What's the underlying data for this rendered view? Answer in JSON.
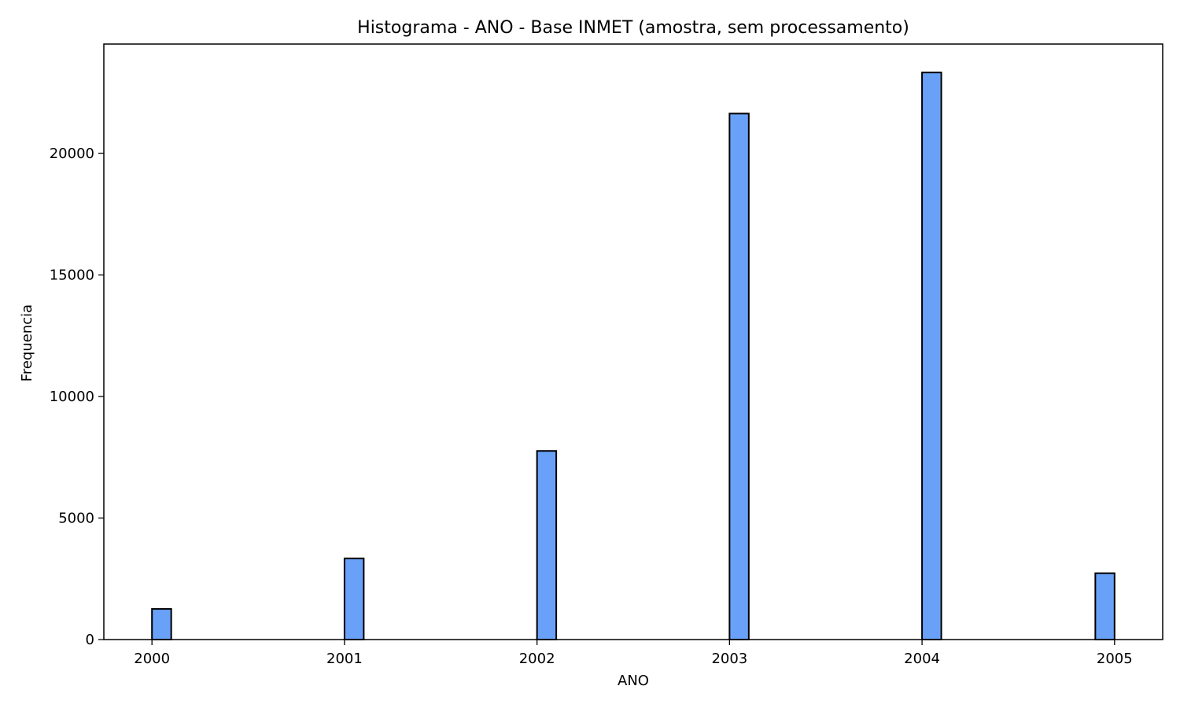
{
  "chart_data": {
    "type": "bar",
    "title": "Histograma - ANO - Base INMET (amostra, sem processamento)",
    "xlabel": "ANO",
    "ylabel": "Frequencia",
    "x_ticks": [
      "2000",
      "2001",
      "2002",
      "2003",
      "2004",
      "2005"
    ],
    "y_ticks": [
      "0",
      "5000",
      "10000",
      "15000",
      "20000"
    ],
    "xlim": [
      1999.75,
      2005.25
    ],
    "ylim": [
      0,
      24500
    ],
    "bins": [
      {
        "start": 2000.0,
        "end": 2000.1,
        "count": 1260
      },
      {
        "start": 2001.0,
        "end": 2001.1,
        "count": 3340
      },
      {
        "start": 2002.0,
        "end": 2002.1,
        "count": 7760
      },
      {
        "start": 2003.0,
        "end": 2003.1,
        "count": 21640
      },
      {
        "start": 2004.0,
        "end": 2004.1,
        "count": 23330
      },
      {
        "start": 2004.9,
        "end": 2005.0,
        "count": 2730
      }
    ],
    "bar_color": "#6aa1f8",
    "edge_color": "#000000",
    "grid": false,
    "legend": "none"
  }
}
